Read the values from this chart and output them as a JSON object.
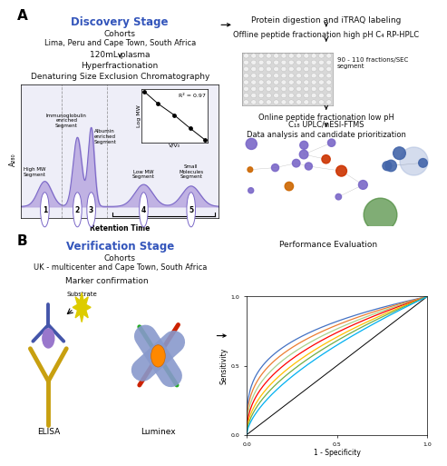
{
  "title_color": "#3355bb",
  "text_color": "#111111",
  "panel_a_label": "A",
  "panel_b_label": "B",
  "discovery_title": "Discovery Stage",
  "discovery_cohorts": "Cohorts",
  "discovery_location": "Lima, Peru and Cape Town, South Africa",
  "plasma_text": "120mL plasma",
  "hyperfractionation": "Hyperfractionation",
  "denaturing_text": "Denaturing Size Exclusion Chromatography",
  "protein_digestion": "Protein digestion and iTRAQ labeling",
  "offline_peptide": "Offline peptide fractionation high pH C₄ RP-HPLC",
  "fractions_note": "90 - 110 fractions/SEC\nsegment",
  "online_peptide_line1": "Online peptide fractionation low pH",
  "online_peptide_line2": "C₁₈ UPLC/nESI-FTMS",
  "data_analysis": "Data analysis and candidate prioritization",
  "r_squared": "R² = 0.97",
  "verification_title": "Verification Stage",
  "verification_cohorts": "Cohorts",
  "verification_location": "UK - multicenter and Cape Town, South Africa",
  "marker_confirmation": "Marker confirmation",
  "performance_eval": "Performance Evaluation",
  "elisa_label": "ELISA",
  "luminex_label": "Luminex",
  "substrate_label": "Substrate",
  "sensitivity_label": "Sensitivity",
  "specificity_label": "1 - Specificity",
  "high_mw": "High MW\nSegment",
  "immuno_seg": "Immunoglobulin\nenriched\nSegment",
  "albumin_seg": "Albumin\nenriched\nSegment",
  "low_mw": "Low MW\nSegment",
  "small_mol": "Small\nMolecules\nSegment",
  "retention_time": "Retention Time",
  "a280_label": "A₂₈₀",
  "log_mw": "Log MW",
  "v_v0": "V/V₀",
  "purple_light": "#c8bce8",
  "purple_dark": "#7b68c8",
  "purple_fill": "#b8a8e0",
  "roc_colors": [
    "#4472c4",
    "#ed7d31",
    "#a9d18e",
    "#ff0000",
    "#ffc000",
    "#70ad47",
    "#00b0f0"
  ]
}
